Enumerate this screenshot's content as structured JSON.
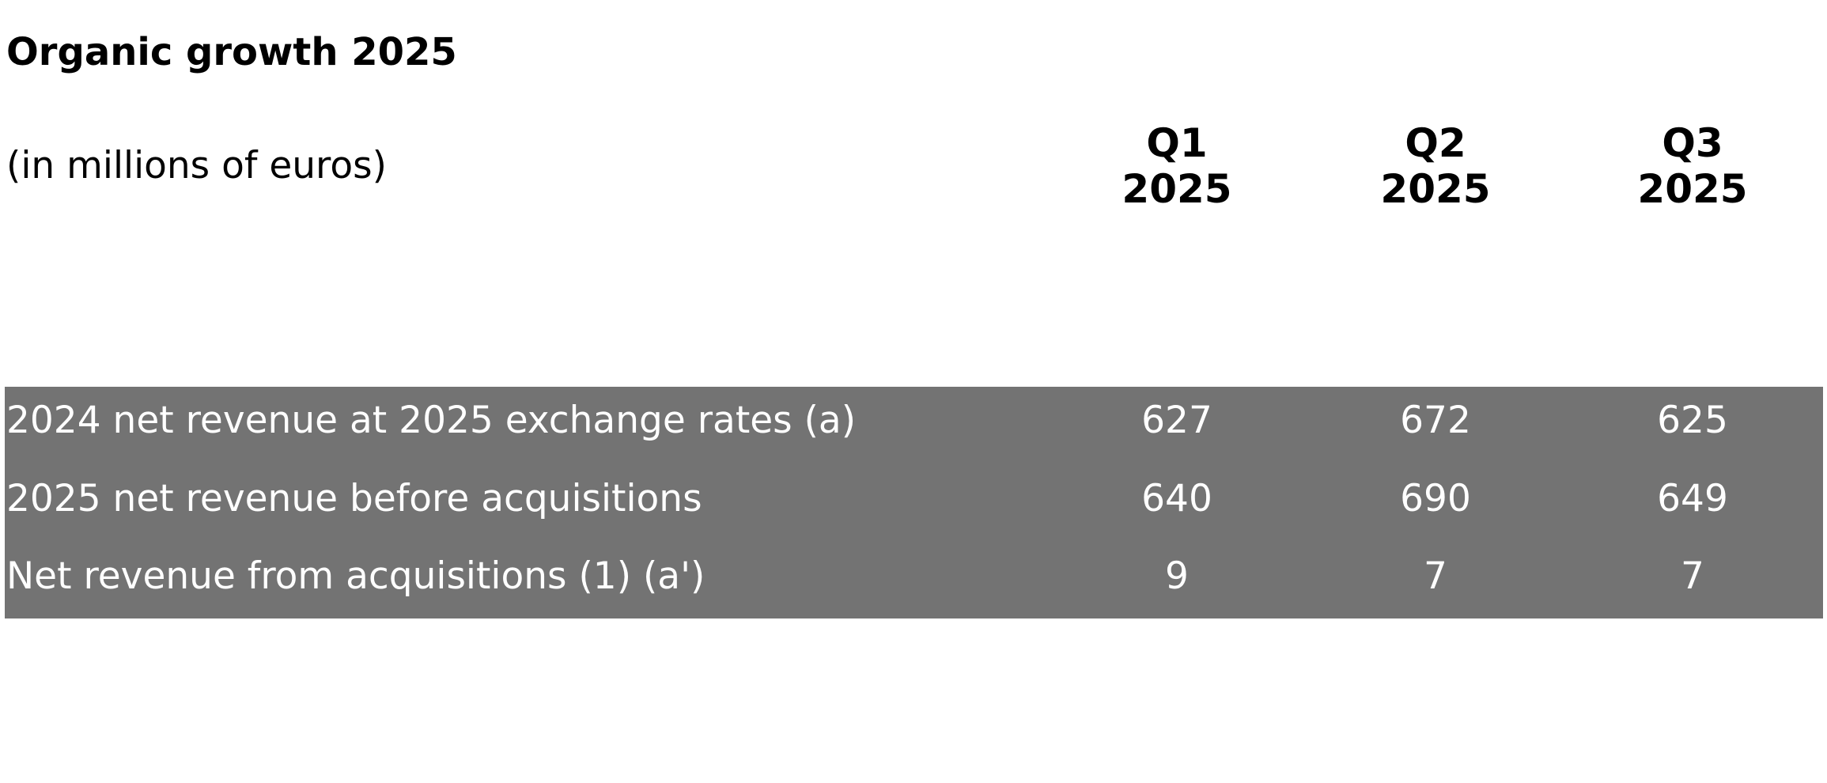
{
  "header": {
    "title": "Organic growth 2025"
  },
  "table": {
    "caption": "(in millions of euros)",
    "columns": [
      "Q1 2025",
      "Q2 2025",
      "Q3 2025"
    ],
    "rows": [
      [
        "2024 net revenue at 2025 exchange rates (a)",
        627,
        672,
        625
      ],
      [
        "2025 net revenue before acquisitions",
        640,
        690,
        649
      ],
      [
        "Net revenue from acquisitions (1) (a')",
        9,
        7,
        7
      ]
    ]
  }
}
